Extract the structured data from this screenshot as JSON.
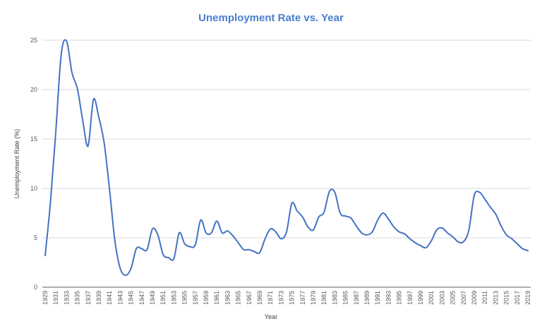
{
  "chart_data": {
    "type": "line",
    "title": "Unemployment Rate vs. Year",
    "xlabel": "Year",
    "ylabel": "Unemployment Rate (%)",
    "ylim": [
      0,
      25
    ],
    "yticks": [
      0,
      5,
      10,
      15,
      20,
      25
    ],
    "grid": true,
    "legend": "none",
    "line_color": "#4472c4",
    "title_color": "#4a7fcf",
    "x": [
      1929,
      1930,
      1931,
      1932,
      1933,
      1934,
      1935,
      1936,
      1937,
      1938,
      1939,
      1940,
      1941,
      1942,
      1943,
      1944,
      1945,
      1946,
      1947,
      1948,
      1949,
      1950,
      1951,
      1952,
      1953,
      1954,
      1955,
      1956,
      1957,
      1958,
      1959,
      1960,
      1961,
      1962,
      1963,
      1964,
      1965,
      1966,
      1967,
      1968,
      1969,
      1970,
      1971,
      1972,
      1973,
      1974,
      1975,
      1976,
      1977,
      1978,
      1979,
      1980,
      1981,
      1982,
      1983,
      1984,
      1985,
      1986,
      1987,
      1988,
      1989,
      1990,
      1991,
      1992,
      1993,
      1994,
      1995,
      1996,
      1997,
      1998,
      1999,
      2000,
      2001,
      2002,
      2003,
      2004,
      2005,
      2006,
      2007,
      2008,
      2009,
      2010,
      2011,
      2012,
      2013,
      2014,
      2015,
      2016,
      2017,
      2018,
      2019
    ],
    "xtick_labels": [
      "1929",
      "1931",
      "1933",
      "1935",
      "1937",
      "1939",
      "1941",
      "1943",
      "1945",
      "1947",
      "1949",
      "1951",
      "1953",
      "1955",
      "1957",
      "1959",
      "1961",
      "1963",
      "1965",
      "1967",
      "1969",
      "1971",
      "1973",
      "1975",
      "1977",
      "1979",
      "1981",
      "1983",
      "1985",
      "1987",
      "1989",
      "1991",
      "1993",
      "1995",
      "1997",
      "1999",
      "2001",
      "2003",
      "2005",
      "2007",
      "2009",
      "2011",
      "2013",
      "2015",
      "2017",
      "2019"
    ],
    "series": [
      {
        "name": "Unemployment Rate (%)",
        "values": [
          3.2,
          8.7,
          15.9,
          23.6,
          24.9,
          21.7,
          20.1,
          16.9,
          14.3,
          19.0,
          17.2,
          14.6,
          9.9,
          4.7,
          1.9,
          1.2,
          1.9,
          3.9,
          3.9,
          3.8,
          5.9,
          5.3,
          3.3,
          3.0,
          2.9,
          5.5,
          4.4,
          4.1,
          4.3,
          6.8,
          5.5,
          5.5,
          6.7,
          5.5,
          5.7,
          5.2,
          4.5,
          3.8,
          3.8,
          3.6,
          3.5,
          4.9,
          5.9,
          5.6,
          4.9,
          5.6,
          8.5,
          7.7,
          7.1,
          6.1,
          5.8,
          7.1,
          7.6,
          9.7,
          9.6,
          7.5,
          7.2,
          7.0,
          6.2,
          5.5,
          5.3,
          5.6,
          6.8,
          7.5,
          6.9,
          6.1,
          5.6,
          5.4,
          4.9,
          4.5,
          4.2,
          4.0,
          4.7,
          5.8,
          6.0,
          5.5,
          5.1,
          4.6,
          4.6,
          5.8,
          9.3,
          9.6,
          8.9,
          8.1,
          7.4,
          6.2,
          5.3,
          4.9,
          4.4,
          3.9,
          3.7
        ]
      }
    ]
  }
}
